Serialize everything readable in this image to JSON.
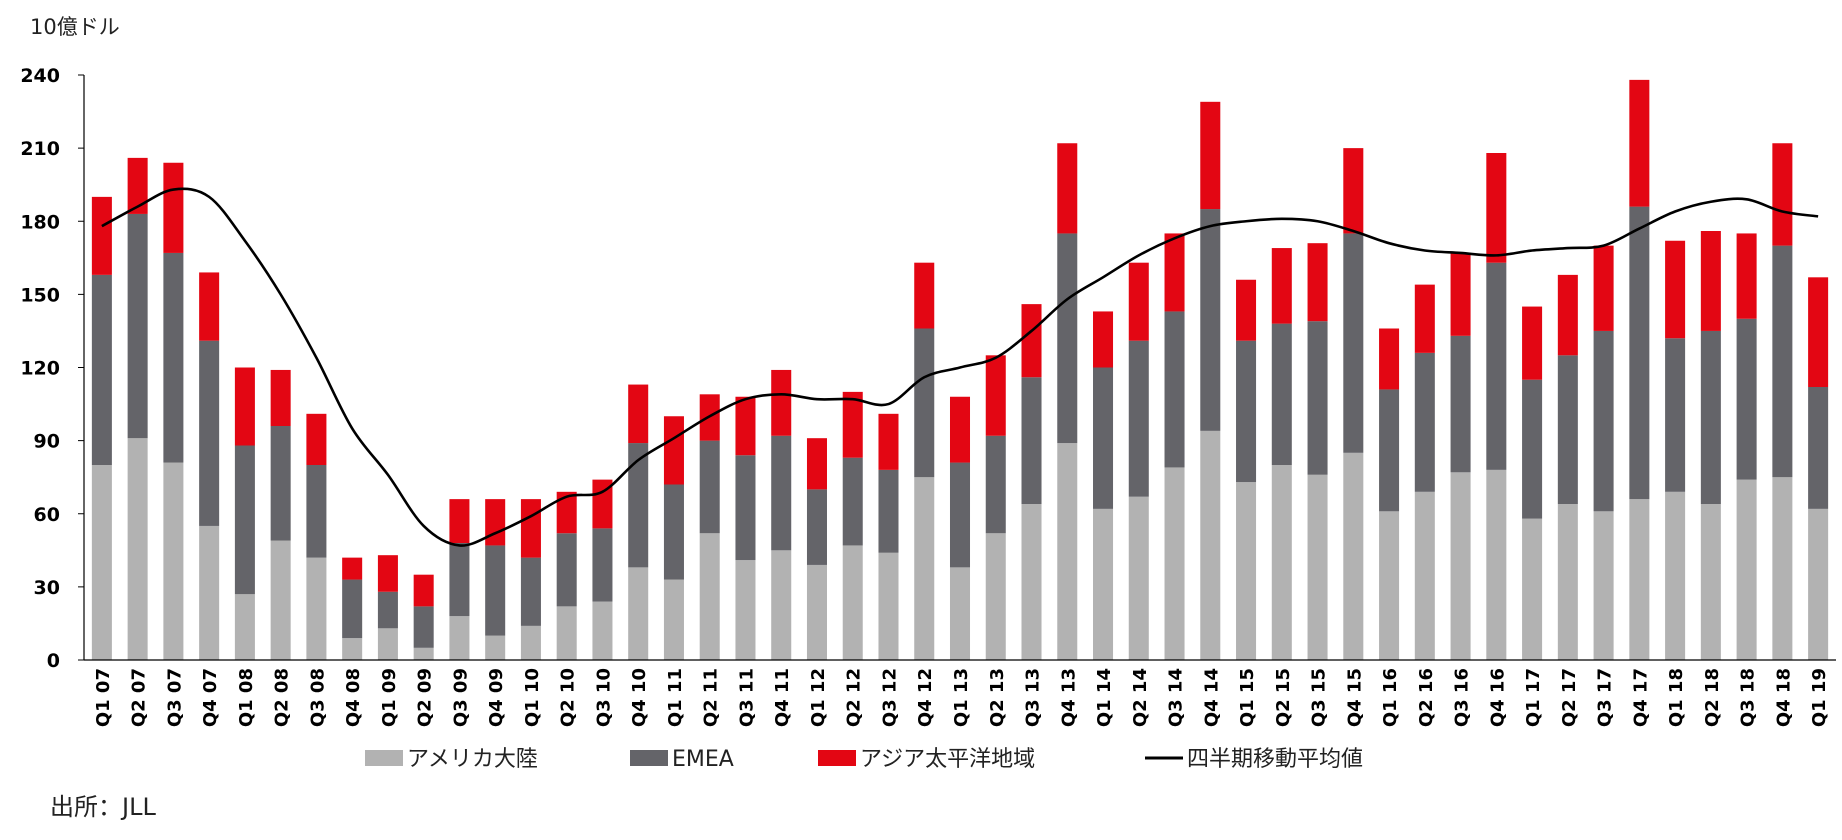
{
  "chart_data": {
    "type": "bar",
    "stacked": true,
    "unit_label": "10億ドル",
    "source": "出所：JLL",
    "ylim": [
      0,
      240
    ],
    "yticks": [
      0,
      30,
      60,
      90,
      120,
      150,
      180,
      210,
      240
    ],
    "grid": false,
    "legend_position": "bottom",
    "categories": [
      "Q1 07",
      "Q2 07",
      "Q3 07",
      "Q4 07",
      "Q1 08",
      "Q2 08",
      "Q3 08",
      "Q4 08",
      "Q1 09",
      "Q2 09",
      "Q3 09",
      "Q4 09",
      "Q1 10",
      "Q2 10",
      "Q3 10",
      "Q4 10",
      "Q1 11",
      "Q2 11",
      "Q3 11",
      "Q4 11",
      "Q1 12",
      "Q2 12",
      "Q3 12",
      "Q4 12",
      "Q1 13",
      "Q2 13",
      "Q3 13",
      "Q4 13",
      "Q1 14",
      "Q2 14",
      "Q3 14",
      "Q4 14",
      "Q1 15",
      "Q2 15",
      "Q3 15",
      "Q4 15",
      "Q1 16",
      "Q2 16",
      "Q3 16",
      "Q4 16",
      "Q1 17",
      "Q2 17",
      "Q3 17",
      "Q4 17",
      "Q1 18",
      "Q2 18",
      "Q3 18",
      "Q4 18",
      "Q1 19"
    ],
    "series": [
      {
        "name": "アメリカ大陸",
        "type": "bar",
        "color": "#b2b2b2",
        "values": [
          80,
          91,
          81,
          55,
          27,
          49,
          42,
          9,
          13,
          5,
          18,
          10,
          14,
          22,
          24,
          38,
          33,
          52,
          41,
          45,
          39,
          47,
          44,
          75,
          38,
          52,
          64,
          89,
          62,
          67,
          79,
          94,
          73,
          80,
          76,
          85,
          61,
          69,
          77,
          78,
          58,
          64,
          61,
          66,
          69,
          64,
          74,
          75,
          62
        ]
      },
      {
        "name": "EMEA",
        "type": "bar",
        "color": "#646469",
        "values": [
          78,
          92,
          86,
          76,
          61,
          47,
          38,
          24,
          15,
          17,
          30,
          37,
          28,
          30,
          30,
          51,
          39,
          38,
          43,
          47,
          31,
          36,
          34,
          61,
          43,
          40,
          52,
          86,
          58,
          64,
          64,
          91,
          58,
          58,
          63,
          90,
          50,
          57,
          56,
          85,
          57,
          61,
          74,
          120,
          63,
          71,
          66,
          95,
          50
        ]
      },
      {
        "name": "アジア太平洋地域",
        "type": "bar",
        "color": "#e30613",
        "values": [
          32,
          23,
          37,
          28,
          32,
          23,
          21,
          9,
          15,
          13,
          18,
          19,
          24,
          17,
          20,
          24,
          28,
          19,
          24,
          27,
          21,
          27,
          23,
          27,
          27,
          33,
          30,
          37,
          23,
          32,
          32,
          44,
          25,
          31,
          32,
          35,
          25,
          28,
          34,
          45,
          30,
          33,
          35,
          52,
          40,
          41,
          35,
          42,
          45
        ]
      },
      {
        "name": "四半期移動平均値",
        "type": "line",
        "color": "#000000",
        "values": [
          178,
          186,
          193,
          190,
          172,
          150,
          124,
          95,
          76,
          55,
          47,
          52,
          59,
          67,
          69,
          82,
          91,
          100,
          107,
          109,
          107,
          107,
          105,
          116,
          120,
          124,
          135,
          148,
          157,
          166,
          173,
          178,
          180,
          181,
          180,
          176,
          171,
          168,
          167,
          166,
          168,
          169,
          170,
          177,
          184,
          188,
          189,
          184,
          182
        ]
      }
    ]
  }
}
